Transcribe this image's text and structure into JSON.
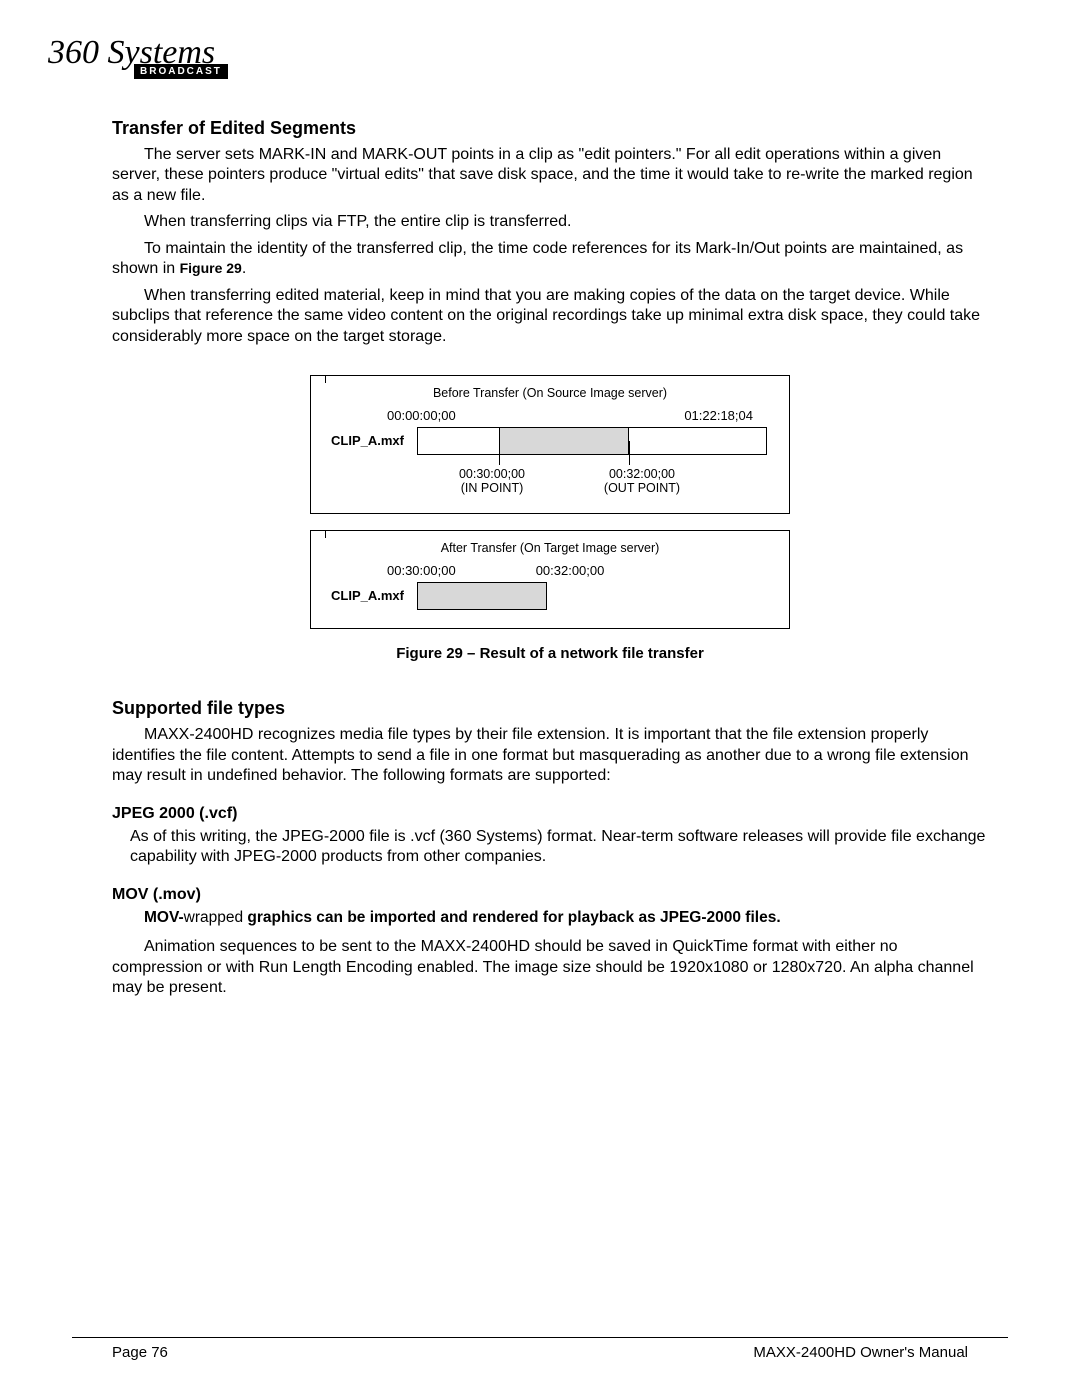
{
  "logo": {
    "brand": "360 Systems",
    "sub": "BROADCAST"
  },
  "section1": {
    "title": "Transfer of Edited Segments",
    "p1a": "The server sets MARK-IN and MARK-OUT points in a clip as \"edit pointers.\"  For all edit operations within a given server, these pointers produce \"virtual edits\" that save disk space, and the time it would take to re-write the marked region as a new file.",
    "p2": "When transferring clips via FTP, the entire clip is transferred.",
    "p3a": "To maintain the identity of the transferred clip, the time code references for its Mark-In/Out points are maintained, as shown in ",
    "p3fig": "Figure 29",
    "p3b": ".",
    "p4": "When transferring edited material, keep in mind that you are making copies of the data on the target device.  While subclips that reference the same video content on the original recordings take up minimal extra disk space, they could take considerably more space on the target storage."
  },
  "figure": {
    "before_title": "Before Transfer (On Source Image server)",
    "tc_start": "00:00:00;00",
    "tc_end": "01:22:18;04",
    "clip_name": "CLIP_A.mxf",
    "in_tc": "00:30:00;00",
    "in_label": "(IN POINT)",
    "out_tc": "00:32:00;00",
    "out_label": "(OUT POINT)",
    "after_title": "After Transfer (On Target Image server)",
    "after_start": "00:30:00;00",
    "after_end": "00:32:00;00",
    "caption": "Figure 29 – Result of a network file transfer"
  },
  "section2": {
    "title": "Supported file types",
    "p1": "MAXX-2400HD recognizes media file types by their file extension.  It is important that the file extension properly identifies the file content.  Attempts to send a file in one format but masquerading as another due to a wrong file extension may result in undefined behavior.  The following formats are supported:"
  },
  "jpeg": {
    "title": "JPEG 2000 (.vcf)",
    "p1": "As of this writing, the JPEG-2000 file is .vcf (360 Systems) format. Near-term software releases will provide file exchange capability with JPEG-2000 products from other companies."
  },
  "mov": {
    "title": "MOV (.mov)",
    "line_b1": "MOV-",
    "line_nb": "wrapped",
    "line_b2": " graphics can be imported and rendered for playback as JPEG-2000 files.",
    "p1": "Animation sequences to be sent to the MAXX-2400HD should be saved in QuickTime format with either no compression or with Run Length Encoding enabled. The image size should be 1920x1080 or 1280x720. An alpha channel may be present."
  },
  "footer": {
    "left": "Page 76",
    "right": "MAXX-2400HD Owner's Manual"
  }
}
